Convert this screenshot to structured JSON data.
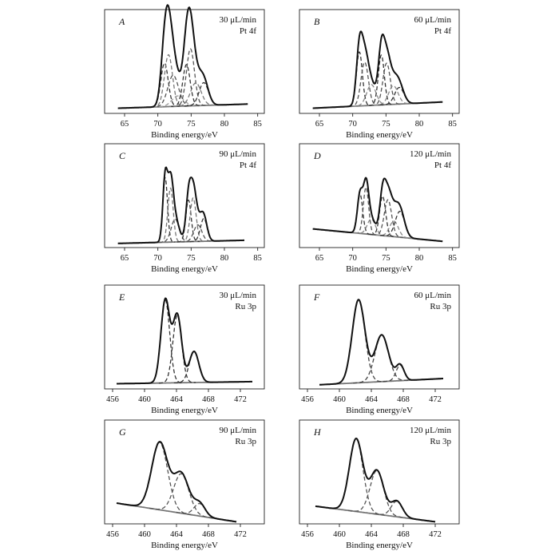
{
  "chart_data": [
    {
      "panel": "A",
      "type": "line",
      "info": [
        "30 μL/min",
        "Pt 4f"
      ],
      "xlabel": "Binding energy/eV",
      "xlim": [
        62,
        86
      ],
      "xticks": [
        "65",
        "70",
        "75",
        "80",
        "85"
      ],
      "xrange": [
        64,
        83.5
      ],
      "baseline": [
        0.05,
        0.09
      ],
      "baseline_color": "#888888",
      "peaks": [
        {
          "x": 71.0,
          "h": 0.42,
          "w": 0.55,
          "color": "#333333"
        },
        {
          "x": 71.6,
          "h": 0.5,
          "w": 0.6,
          "color": "#777777"
        },
        {
          "x": 72.3,
          "h": 0.3,
          "w": 0.8,
          "color": "#555555"
        },
        {
          "x": 73.0,
          "h": 0.1,
          "w": 0.9,
          "color": "#999999"
        },
        {
          "x": 74.3,
          "h": 0.4,
          "w": 0.55,
          "color": "#333333"
        },
        {
          "x": 74.9,
          "h": 0.55,
          "w": 0.6,
          "color": "#555555"
        },
        {
          "x": 75.7,
          "h": 0.22,
          "w": 0.8,
          "color": "#777777"
        },
        {
          "x": 76.9,
          "h": 0.22,
          "w": 0.7,
          "color": "#333333"
        }
      ]
    },
    {
      "panel": "B",
      "type": "line",
      "info": [
        "60 μL/min",
        "Pt 4f"
      ],
      "xlabel": "Binding energy/eV",
      "xlim": [
        62,
        86
      ],
      "xticks": [
        "65",
        "70",
        "75",
        "80",
        "85"
      ],
      "xrange": [
        64,
        83.5
      ],
      "baseline": [
        0.05,
        0.11
      ],
      "baseline_color": "#888888",
      "peaks": [
        {
          "x": 71.0,
          "h": 0.52,
          "w": 0.45,
          "color": "#333333"
        },
        {
          "x": 71.8,
          "h": 0.42,
          "w": 0.55,
          "color": "#555555"
        },
        {
          "x": 72.8,
          "h": 0.2,
          "w": 0.7,
          "color": "#888888"
        },
        {
          "x": 74.3,
          "h": 0.48,
          "w": 0.45,
          "color": "#333333"
        },
        {
          "x": 75.1,
          "h": 0.4,
          "w": 0.55,
          "color": "#555555"
        },
        {
          "x": 76.1,
          "h": 0.18,
          "w": 0.7,
          "color": "#888888"
        },
        {
          "x": 77.0,
          "h": 0.16,
          "w": 0.7,
          "color": "#333333"
        }
      ]
    },
    {
      "panel": "C",
      "type": "line",
      "info": [
        "90 μL/min",
        "Pt 4f"
      ],
      "xlabel": "Binding energy/eV",
      "xlim": [
        62,
        86
      ],
      "xticks": [
        "65",
        "70",
        "75",
        "80",
        "85"
      ],
      "xrange": [
        64,
        83
      ],
      "baseline": [
        0.04,
        0.07
      ],
      "baseline_color": "#888888",
      "peaks": [
        {
          "x": 71.1,
          "h": 0.62,
          "w": 0.35,
          "color": "#333333"
        },
        {
          "x": 71.9,
          "h": 0.52,
          "w": 0.4,
          "color": "#777777"
        },
        {
          "x": 72.6,
          "h": 0.22,
          "w": 0.6,
          "color": "#555555"
        },
        {
          "x": 74.6,
          "h": 0.4,
          "w": 0.4,
          "color": "#333333"
        },
        {
          "x": 75.3,
          "h": 0.42,
          "w": 0.45,
          "color": "#777777"
        },
        {
          "x": 76.0,
          "h": 0.16,
          "w": 0.6,
          "color": "#555555"
        },
        {
          "x": 76.9,
          "h": 0.22,
          "w": 0.5,
          "color": "#333333"
        }
      ]
    },
    {
      "panel": "D",
      "type": "line",
      "info": [
        "120 μL/min",
        "Pt 4f"
      ],
      "xlabel": "Binding energy/eV",
      "xlim": [
        62,
        86
      ],
      "xticks": [
        "65",
        "70",
        "75",
        "80",
        "85"
      ],
      "xrange": [
        64,
        83.5
      ],
      "baseline": [
        0.18,
        0.06
      ],
      "baseline_color": "#555555",
      "peaks": [
        {
          "x": 71.1,
          "h": 0.38,
          "w": 0.4,
          "color": "#333333"
        },
        {
          "x": 72.0,
          "h": 0.45,
          "w": 0.4,
          "color": "#555555"
        },
        {
          "x": 72.8,
          "h": 0.15,
          "w": 0.6,
          "color": "#888888"
        },
        {
          "x": 74.5,
          "h": 0.38,
          "w": 0.45,
          "color": "#333333"
        },
        {
          "x": 75.3,
          "h": 0.35,
          "w": 0.55,
          "color": "#555555"
        },
        {
          "x": 76.2,
          "h": 0.15,
          "w": 0.65,
          "color": "#888888"
        },
        {
          "x": 77.1,
          "h": 0.25,
          "w": 0.7,
          "color": "#333333"
        }
      ]
    },
    {
      "panel": "E",
      "type": "line",
      "info": [
        "30 μL/min",
        "Ru 3p"
      ],
      "xlabel": "Binding energy/eV",
      "xlim": [
        455,
        475
      ],
      "xticks": [
        "456",
        "460",
        "464",
        "468",
        "472"
      ],
      "xrange": [
        456.5,
        473.5
      ],
      "baseline": [
        0.05,
        0.07
      ],
      "baseline_color": "#999999",
      "peaks": [
        {
          "x": 462.6,
          "h": 0.8,
          "w": 0.55,
          "color": "#333333"
        },
        {
          "x": 464.1,
          "h": 0.65,
          "w": 0.55,
          "color": "#333333"
        },
        {
          "x": 466.2,
          "h": 0.3,
          "w": 0.6,
          "color": "#333333"
        }
      ]
    },
    {
      "panel": "F",
      "type": "line",
      "info": [
        "60 μL/min",
        "Ru 3p"
      ],
      "xlabel": "Binding energy/eV",
      "xlim": [
        455,
        475
      ],
      "xticks": [
        "456",
        "460",
        "464",
        "468",
        "472"
      ],
      "xrange": [
        457.5,
        473
      ],
      "baseline": [
        0.04,
        0.1
      ],
      "baseline_color": "#777777",
      "peaks": [
        {
          "x": 462.4,
          "h": 0.8,
          "w": 0.8,
          "color": "#444444"
        },
        {
          "x": 465.3,
          "h": 0.45,
          "w": 0.85,
          "color": "#444444"
        },
        {
          "x": 467.6,
          "h": 0.15,
          "w": 0.5,
          "color": "#444444"
        }
      ]
    },
    {
      "panel": "G",
      "type": "line",
      "info": [
        "90 μL/min",
        "Ru 3p"
      ],
      "xlabel": "Binding energy/eV",
      "xlim": [
        455,
        475
      ],
      "xticks": [
        "456",
        "460",
        "464",
        "468",
        "472"
      ],
      "xrange": [
        456.5,
        471.5
      ],
      "baseline": [
        0.2,
        0.02
      ],
      "baseline_color": "#555555",
      "peaks": [
        {
          "x": 461.9,
          "h": 0.65,
          "w": 1.0,
          "color": "#555555"
        },
        {
          "x": 464.6,
          "h": 0.38,
          "w": 0.95,
          "color": "#555555"
        },
        {
          "x": 466.9,
          "h": 0.12,
          "w": 0.7,
          "color": "#555555"
        }
      ]
    },
    {
      "panel": "H",
      "type": "line",
      "info": [
        "120 μL/min",
        "Ru 3p"
      ],
      "xlabel": "Binding energy/eV",
      "xlim": [
        455,
        475
      ],
      "xticks": [
        "456",
        "460",
        "464",
        "468",
        "472"
      ],
      "xrange": [
        457,
        472
      ],
      "baseline": [
        0.17,
        0.02
      ],
      "baseline_color": "#555555",
      "peaks": [
        {
          "x": 462.1,
          "h": 0.7,
          "w": 0.85,
          "color": "#555555"
        },
        {
          "x": 464.7,
          "h": 0.42,
          "w": 0.85,
          "color": "#555555"
        },
        {
          "x": 467.2,
          "h": 0.15,
          "w": 0.7,
          "color": "#555555"
        }
      ]
    }
  ]
}
